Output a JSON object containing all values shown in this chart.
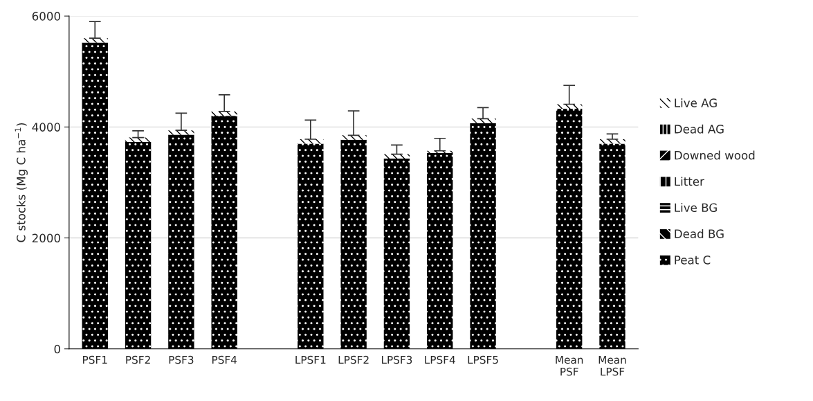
{
  "chart_data": {
    "type": "bar",
    "stacked": true,
    "ylabel": "C stocks (Mg C ha$^{−1}$)",
    "categories": [
      "PSF1",
      "PSF2",
      "PSF3",
      "PSF4",
      null,
      "LPSF1",
      "LPSF2",
      "LPSF3",
      "LPSF4",
      "LPSF5",
      null,
      "Mean PSF",
      "Mean LPSF"
    ],
    "series": [
      {
        "name": "Peat C",
        "color": "#000000",
        "values": [
          5520,
          3730,
          3860,
          4200,
          null,
          3700,
          3770,
          3430,
          3530,
          4070,
          null,
          4330,
          3700
        ]
      },
      {
        "name": "Dead BG",
        "color": "#000000",
        "values": [
          null,
          null,
          null,
          null,
          null,
          null,
          null,
          null,
          null,
          null,
          null,
          null,
          null
        ]
      },
      {
        "name": "Live BG",
        "color": "#000000",
        "values": [
          null,
          null,
          null,
          null,
          null,
          null,
          null,
          null,
          null,
          null,
          null,
          null,
          null
        ]
      },
      {
        "name": "Litter",
        "color": "#000000",
        "values": [
          null,
          null,
          null,
          null,
          null,
          null,
          null,
          null,
          null,
          null,
          null,
          null,
          null
        ]
      },
      {
        "name": "Downed wood",
        "color": "#000000",
        "values": [
          null,
          null,
          null,
          null,
          null,
          null,
          null,
          null,
          null,
          null,
          null,
          null,
          null
        ]
      },
      {
        "name": "Dead AG",
        "color": "#000000",
        "values": [
          null,
          null,
          null,
          null,
          null,
          null,
          null,
          null,
          null,
          null,
          null,
          null,
          null
        ]
      },
      {
        "name": "Live AG",
        "color": "#ffffff",
        "values": [
          80,
          80,
          80,
          80,
          null,
          80,
          80,
          80,
          40,
          80,
          null,
          80,
          80
        ],
        "errors": [
          300,
          120,
          310,
          300,
          null,
          345,
          440,
          165,
          225,
          200,
          null,
          340,
          95
        ]
      }
    ],
    "ylim": [
      0,
      6000
    ],
    "yticks": [
      0,
      2000,
      4000,
      6000
    ],
    "grid": "y",
    "legend": "right"
  }
}
